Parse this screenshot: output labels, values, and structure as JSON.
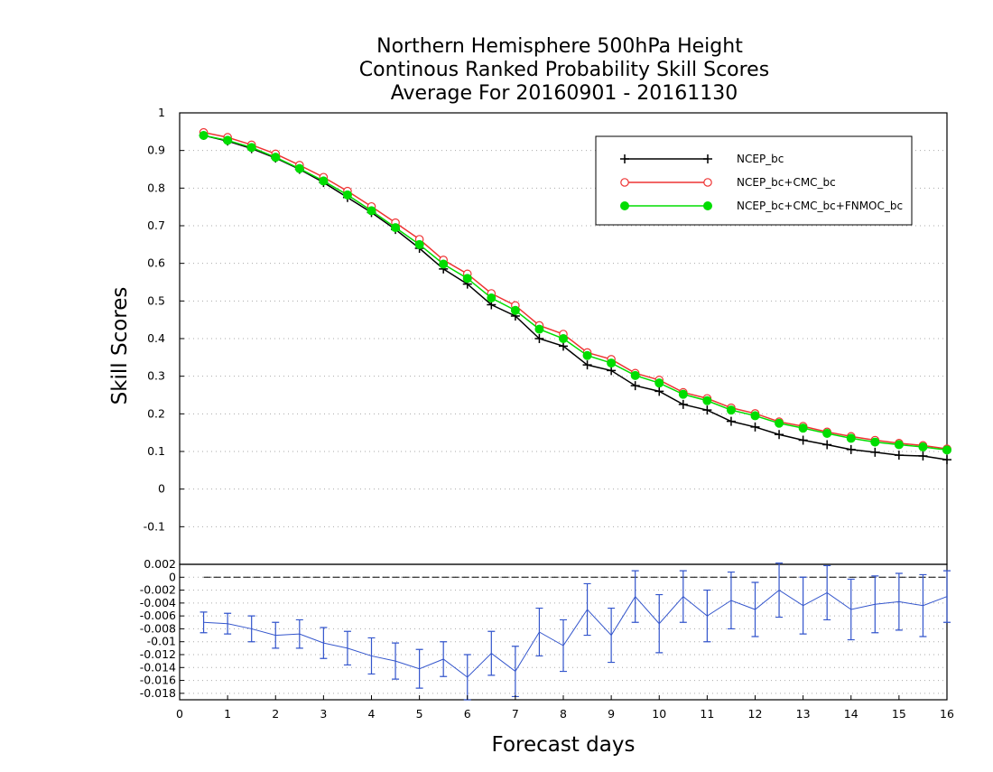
{
  "chart_data": [
    {
      "type": "line",
      "title": [
        "Northern Hemisphere 500hPa Height",
        "Continous Ranked Probability Skill Scores",
        "Average For 20160901 - 20161130"
      ],
      "xlabel": "Forecast days",
      "ylabel": "Skill Scores",
      "xlim": [
        0,
        16
      ],
      "ylim": [
        -0.2,
        1
      ],
      "x_ticks": [
        "0",
        "1",
        "2",
        "3",
        "4",
        "5",
        "6",
        "7",
        "8",
        "9",
        "10",
        "11",
        "12",
        "13",
        "14",
        "15",
        "16"
      ],
      "y_ticks": [
        "-0.1",
        "0",
        "0.1",
        "0.2",
        "0.3",
        "0.4",
        "0.5",
        "0.6",
        "0.7",
        "0.8",
        "0.9",
        "1"
      ],
      "grid": "horizontal dotted",
      "legend_position": "top-right",
      "x": [
        0.5,
        1,
        1.5,
        2,
        2.5,
        3,
        3.5,
        4,
        4.5,
        5,
        5.5,
        6,
        6.5,
        7,
        7.5,
        8,
        8.5,
        9,
        9.5,
        10,
        10.5,
        11,
        11.5,
        12,
        12.5,
        13,
        13.5,
        14,
        14.5,
        15,
        15.5,
        16
      ],
      "series": [
        {
          "name": "NCEP_bc",
          "color": "#000000",
          "marker": "plus",
          "values": [
            0.94,
            0.925,
            0.905,
            0.88,
            0.85,
            0.815,
            0.775,
            0.735,
            0.69,
            0.64,
            0.585,
            0.545,
            0.49,
            0.46,
            0.4,
            0.38,
            0.33,
            0.315,
            0.275,
            0.26,
            0.225,
            0.21,
            0.18,
            0.165,
            0.145,
            0.13,
            0.118,
            0.105,
            0.098,
            0.09,
            0.088,
            0.078
          ]
        },
        {
          "name": "NCEP_bc+CMC_bc",
          "color": "#ee3333",
          "marker": "open-circle",
          "values": [
            0.948,
            0.935,
            0.915,
            0.891,
            0.861,
            0.829,
            0.792,
            0.751,
            0.708,
            0.664,
            0.609,
            0.572,
            0.52,
            0.488,
            0.435,
            0.412,
            0.363,
            0.345,
            0.308,
            0.29,
            0.257,
            0.241,
            0.216,
            0.201,
            0.179,
            0.167,
            0.152,
            0.14,
            0.13,
            0.122,
            0.116,
            0.107
          ]
        },
        {
          "name": "NCEP_bc+CMC_bc+FNMOC_bc",
          "color": "#00dd00",
          "marker": "filled-circle",
          "values": [
            0.94,
            0.927,
            0.908,
            0.882,
            0.852,
            0.819,
            0.782,
            0.74,
            0.695,
            0.65,
            0.598,
            0.56,
            0.508,
            0.475,
            0.425,
            0.4,
            0.355,
            0.335,
            0.302,
            0.282,
            0.252,
            0.235,
            0.21,
            0.195,
            0.175,
            0.162,
            0.148,
            0.135,
            0.125,
            0.118,
            0.112,
            0.104
          ]
        }
      ]
    },
    {
      "type": "line",
      "title": "",
      "xlim": [
        0,
        16
      ],
      "ylim": [
        -0.019,
        0.002
      ],
      "y_ticks": [
        "-0.018",
        "-0.016",
        "-0.014",
        "-0.012",
        "-0.01",
        "-0.008",
        "-0.006",
        "-0.004",
        "-0.002",
        "0",
        "0.002"
      ],
      "grid": "horizontal dotted",
      "reference_line": 0,
      "x": [
        0.5,
        1,
        1.5,
        2,
        2.5,
        3,
        3.5,
        4,
        4.5,
        5,
        5.5,
        6,
        6.5,
        7,
        7.5,
        8,
        8.5,
        9,
        9.5,
        10,
        10.5,
        11,
        11.5,
        12,
        12.5,
        13,
        13.5,
        14,
        14.5,
        15,
        15.5,
        16
      ],
      "series": [
        {
          "name": "",
          "color": "#3355cc",
          "marker": "error-bar",
          "values": [
            -0.007,
            -0.0072,
            -0.008,
            -0.009,
            -0.0088,
            -0.0102,
            -0.011,
            -0.0122,
            -0.013,
            -0.0142,
            -0.0127,
            -0.0155,
            -0.0118,
            -0.0146,
            -0.0085,
            -0.0106,
            -0.005,
            -0.009,
            -0.003,
            -0.0072,
            -0.003,
            -0.006,
            -0.0036,
            -0.005,
            -0.002,
            -0.0044,
            -0.0024,
            -0.005,
            -0.0042,
            -0.0038,
            -0.0044,
            -0.003
          ],
          "error_low": [
            -0.0086,
            -0.0088,
            -0.01,
            -0.011,
            -0.011,
            -0.0126,
            -0.0136,
            -0.015,
            -0.0158,
            -0.0172,
            -0.0154,
            -0.019,
            -0.0152,
            -0.0185,
            -0.0122,
            -0.0146,
            -0.009,
            -0.0132,
            -0.007,
            -0.0117,
            -0.007,
            -0.01,
            -0.008,
            -0.0092,
            -0.0062,
            -0.0088,
            -0.0066,
            -0.0097,
            -0.0086,
            -0.0082,
            -0.0092,
            -0.007
          ],
          "error_high": [
            -0.0054,
            -0.0056,
            -0.006,
            -0.007,
            -0.0066,
            -0.0078,
            -0.0084,
            -0.0094,
            -0.0102,
            -0.0112,
            -0.01,
            -0.012,
            -0.0084,
            -0.0107,
            -0.0048,
            -0.0066,
            -0.001,
            -0.0048,
            0.001,
            -0.0027,
            0.001,
            -0.002,
            0.0008,
            -0.0008,
            0.0022,
            0.0,
            0.0018,
            -0.0003,
            0.0002,
            0.0006,
            0.0004,
            0.001
          ]
        }
      ]
    }
  ]
}
